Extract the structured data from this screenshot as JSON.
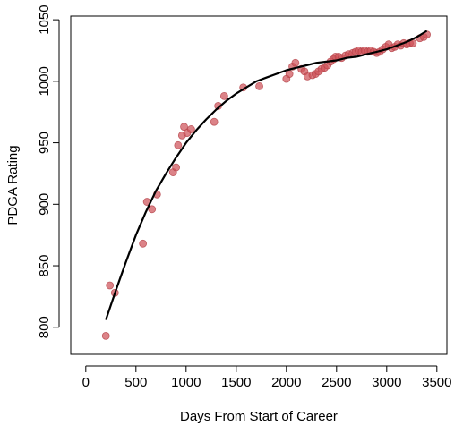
{
  "chart_data": {
    "type": "scatter",
    "title": "",
    "xlabel": "Days From Start of Career",
    "ylabel": "PDGA Rating",
    "xlim": [
      -150,
      3600
    ],
    "ylim": [
      778,
      1053
    ],
    "x_ticks": [
      0,
      500,
      1000,
      1500,
      2000,
      2500,
      3000,
      3500
    ],
    "y_ticks": [
      800,
      850,
      900,
      950,
      1000,
      1050
    ],
    "grid": false,
    "legend": "none",
    "colors": {
      "points": "#cd4f55",
      "points_edge": "#b5434a",
      "smooth_line": "#000000"
    },
    "series": [
      {
        "kind": "points",
        "points": [
          [
            200,
            793
          ],
          [
            240,
            834
          ],
          [
            290,
            828
          ],
          [
            570,
            868
          ],
          [
            610,
            902
          ],
          [
            660,
            896
          ],
          [
            710,
            908
          ],
          [
            870,
            926
          ],
          [
            900,
            930
          ],
          [
            920,
            948
          ],
          [
            960,
            956
          ],
          [
            980,
            963
          ],
          [
            1010,
            958
          ],
          [
            1050,
            961
          ],
          [
            1280,
            967
          ],
          [
            1320,
            980
          ],
          [
            1380,
            988
          ],
          [
            1570,
            995
          ],
          [
            1730,
            996
          ],
          [
            2000,
            1002
          ],
          [
            2030,
            1006
          ],
          [
            2060,
            1012
          ],
          [
            2090,
            1015
          ],
          [
            2150,
            1010
          ],
          [
            2180,
            1008
          ],
          [
            2210,
            1004
          ],
          [
            2260,
            1005
          ],
          [
            2290,
            1006
          ],
          [
            2320,
            1008
          ],
          [
            2350,
            1010
          ],
          [
            2380,
            1011
          ],
          [
            2410,
            1013
          ],
          [
            2440,
            1016
          ],
          [
            2470,
            1018
          ],
          [
            2490,
            1020
          ],
          [
            2520,
            1020
          ],
          [
            2550,
            1019
          ],
          [
            2590,
            1021
          ],
          [
            2620,
            1022
          ],
          [
            2660,
            1023
          ],
          [
            2690,
            1024
          ],
          [
            2720,
            1025
          ],
          [
            2750,
            1024
          ],
          [
            2780,
            1025
          ],
          [
            2810,
            1024
          ],
          [
            2840,
            1025
          ],
          [
            2870,
            1024
          ],
          [
            2900,
            1023
          ],
          [
            2930,
            1024
          ],
          [
            2960,
            1026
          ],
          [
            2990,
            1028
          ],
          [
            3020,
            1030
          ],
          [
            3050,
            1027
          ],
          [
            3080,
            1028
          ],
          [
            3110,
            1030
          ],
          [
            3140,
            1029
          ],
          [
            3170,
            1031
          ],
          [
            3200,
            1030
          ],
          [
            3230,
            1031
          ],
          [
            3260,
            1031
          ],
          [
            3330,
            1035
          ],
          [
            3370,
            1036
          ],
          [
            3400,
            1038
          ]
        ]
      },
      {
        "kind": "smooth",
        "points": [
          [
            200,
            806
          ],
          [
            300,
            830
          ],
          [
            400,
            853
          ],
          [
            500,
            875
          ],
          [
            600,
            894
          ],
          [
            700,
            911
          ],
          [
            800,
            925
          ],
          [
            900,
            938
          ],
          [
            1000,
            950
          ],
          [
            1100,
            960
          ],
          [
            1200,
            969
          ],
          [
            1300,
            977
          ],
          [
            1400,
            984
          ],
          [
            1500,
            990
          ],
          [
            1600,
            995
          ],
          [
            1700,
            1000
          ],
          [
            1800,
            1003
          ],
          [
            1900,
            1006
          ],
          [
            2000,
            1009
          ],
          [
            2100,
            1011
          ],
          [
            2200,
            1013
          ],
          [
            2300,
            1015
          ],
          [
            2400,
            1016
          ],
          [
            2500,
            1017
          ],
          [
            2600,
            1019
          ],
          [
            2700,
            1020
          ],
          [
            2800,
            1022
          ],
          [
            2900,
            1024
          ],
          [
            3000,
            1026
          ],
          [
            3100,
            1029
          ],
          [
            3200,
            1032
          ],
          [
            3300,
            1036
          ],
          [
            3400,
            1041
          ]
        ]
      }
    ]
  }
}
